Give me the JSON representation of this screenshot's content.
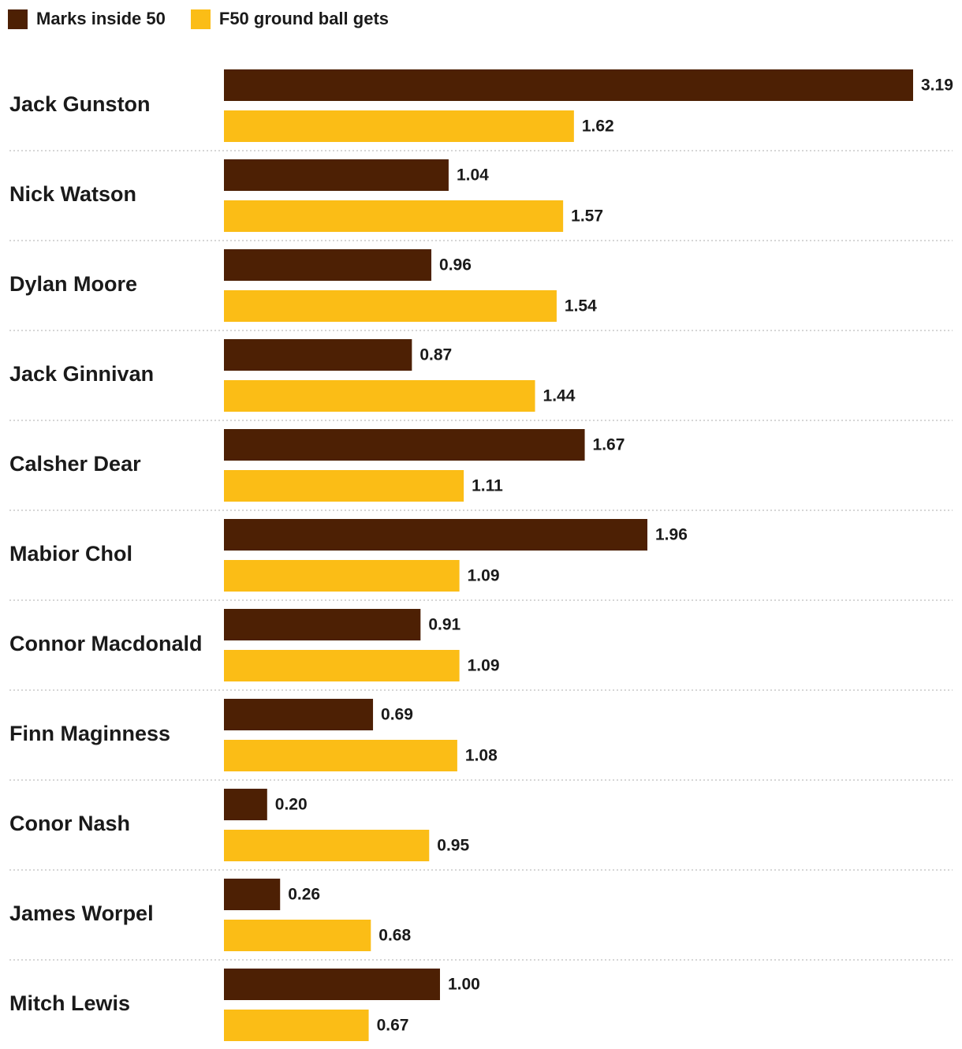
{
  "legend": {
    "series_1": "Marks inside 50",
    "series_2": "F50 ground ball gets"
  },
  "colors": {
    "series_1": "#4d2004",
    "series_2": "#fbbd16",
    "separator": "#c8c8c8"
  },
  "chart_data": {
    "type": "bar",
    "orientation": "horizontal",
    "title": "",
    "xlabel": "",
    "ylabel": "",
    "xlim": [
      0,
      3.19
    ],
    "grid": false,
    "legend_position": "top-left",
    "categories": [
      "Jack Gunston",
      "Nick Watson",
      "Dylan Moore",
      "Jack Ginnivan",
      "Calsher Dear",
      "Mabior Chol",
      "Connor Macdonald",
      "Finn Maginness",
      "Conor Nash",
      "James Worpel",
      "Mitch Lewis"
    ],
    "series": [
      {
        "name": "Marks inside 50",
        "values": [
          3.19,
          1.04,
          0.96,
          0.87,
          1.67,
          1.96,
          0.91,
          0.69,
          0.2,
          0.26,
          1.0
        ],
        "labels": [
          "3.19",
          "1.04",
          "0.96",
          "0.87",
          "1.67",
          "1.96",
          "0.91",
          "0.69",
          "0.20",
          "0.26",
          "1.00"
        ]
      },
      {
        "name": "F50 ground ball gets",
        "values": [
          1.62,
          1.57,
          1.54,
          1.44,
          1.11,
          1.09,
          1.09,
          1.08,
          0.95,
          0.68,
          0.67
        ],
        "labels": [
          "1.62",
          "1.57",
          "1.54",
          "1.44",
          "1.11",
          "1.09",
          "1.09",
          "1.08",
          "0.95",
          "0.68",
          "0.67"
        ]
      }
    ]
  }
}
